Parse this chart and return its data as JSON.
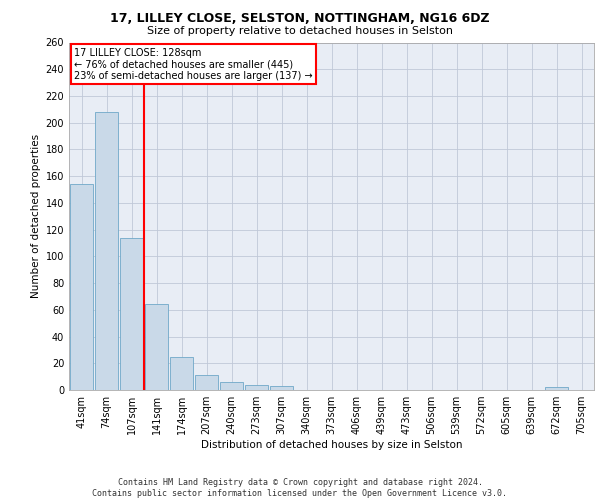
{
  "title1": "17, LILLEY CLOSE, SELSTON, NOTTINGHAM, NG16 6DZ",
  "title2": "Size of property relative to detached houses in Selston",
  "xlabel": "Distribution of detached houses by size in Selston",
  "ylabel": "Number of detached properties",
  "bar_labels": [
    "41sqm",
    "74sqm",
    "107sqm",
    "141sqm",
    "174sqm",
    "207sqm",
    "240sqm",
    "273sqm",
    "307sqm",
    "340sqm",
    "373sqm",
    "406sqm",
    "439sqm",
    "473sqm",
    "506sqm",
    "539sqm",
    "572sqm",
    "605sqm",
    "639sqm",
    "672sqm",
    "705sqm"
  ],
  "bar_values": [
    154,
    208,
    114,
    64,
    25,
    11,
    6,
    4,
    3,
    0,
    0,
    0,
    0,
    0,
    0,
    0,
    0,
    0,
    0,
    2,
    0
  ],
  "bar_color": "#c9d9e8",
  "bar_edge_color": "#6fa8c8",
  "annotation_text": "17 LILLEY CLOSE: 128sqm\n← 76% of detached houses are smaller (445)\n23% of semi-detached houses are larger (137) →",
  "annotation_box_color": "white",
  "annotation_box_edge_color": "red",
  "vline_color": "red",
  "ylim": [
    0,
    260
  ],
  "yticks": [
    0,
    20,
    40,
    60,
    80,
    100,
    120,
    140,
    160,
    180,
    200,
    220,
    240,
    260
  ],
  "grid_color": "#c0c8d8",
  "background_color": "#e8edf5",
  "footer": "Contains HM Land Registry data © Crown copyright and database right 2024.\nContains public sector information licensed under the Open Government Licence v3.0."
}
